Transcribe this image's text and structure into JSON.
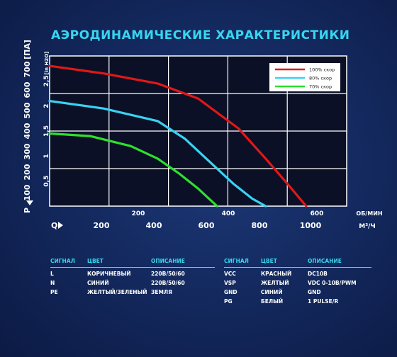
{
  "chart_data": {
    "type": "line",
    "title": "АЭРОДИНАМИЧЕСКИЕ ХАРАКТЕРИСТИКИ",
    "y_axis": {
      "label": "P",
      "unit_pa": "[ПА]",
      "unit_in": "[in H2O]",
      "pa_ticks": [
        "100",
        "200",
        "300",
        "400",
        "500",
        "600",
        "700"
      ],
      "in_ticks": [
        "0,5",
        "1",
        "1,5",
        "2",
        "2,5"
      ],
      "ylim_in": [
        0,
        3.0
      ]
    },
    "x_axis": {
      "label": "Q",
      "cfm_unit": "ОБ/МИН",
      "cfm_ticks": [
        "200",
        "400",
        "600"
      ],
      "m3h_unit": "М³/Ч",
      "m3h_ticks": [
        "200",
        "400",
        "600",
        "800",
        "1000"
      ],
      "xlim_m3h": [
        0,
        1100
      ]
    },
    "series": [
      {
        "name": "100% скор",
        "color": "#e01818",
        "x": [
          0,
          200,
          400,
          550,
          700,
          800,
          880,
          950
        ],
        "y": [
          2.8,
          2.65,
          2.45,
          2.15,
          1.55,
          0.95,
          0.45,
          0.0
        ]
      },
      {
        "name": "80% скор",
        "color": "#39d2f2",
        "x": [
          0,
          200,
          400,
          500,
          600,
          680,
          750,
          800
        ],
        "y": [
          2.1,
          1.95,
          1.7,
          1.35,
          0.85,
          0.45,
          0.15,
          0.0
        ]
      },
      {
        "name": "70% скор",
        "color": "#2ee02e",
        "x": [
          0,
          150,
          300,
          400,
          480,
          550,
          590,
          620
        ],
        "y": [
          1.45,
          1.4,
          1.2,
          0.95,
          0.65,
          0.35,
          0.15,
          0.0
        ]
      }
    ],
    "grid": true,
    "legend_position": "top-right"
  },
  "tables": {
    "left": {
      "headers": [
        "СИГНАЛ",
        "ЦВЕТ",
        "ОПИСАНИЕ"
      ],
      "rows": [
        [
          "L",
          "КОРИЧНЕВЫЙ",
          "220В/50/60"
        ],
        [
          "N",
          "СИНИЙ",
          "220В/50/60"
        ],
        [
          "PE",
          "ЖЕЛТЫЙ/ЗЕЛЕНЫЙ",
          "ЗЕМЛЯ"
        ]
      ]
    },
    "right": {
      "headers": [
        "СИГНАЛ",
        "ЦВЕТ",
        "ОПИСАНИЕ"
      ],
      "rows": [
        [
          "VCC",
          "КРАСНЫЙ",
          "DC10B"
        ],
        [
          "VSP",
          "ЖЕЛТЫЙ",
          "VDC 0-10В/PWM"
        ],
        [
          "GND",
          "СИНИЙ",
          "GND"
        ],
        [
          "PG",
          "БЕЛЫЙ",
          "1 PULSE/R"
        ]
      ]
    }
  }
}
